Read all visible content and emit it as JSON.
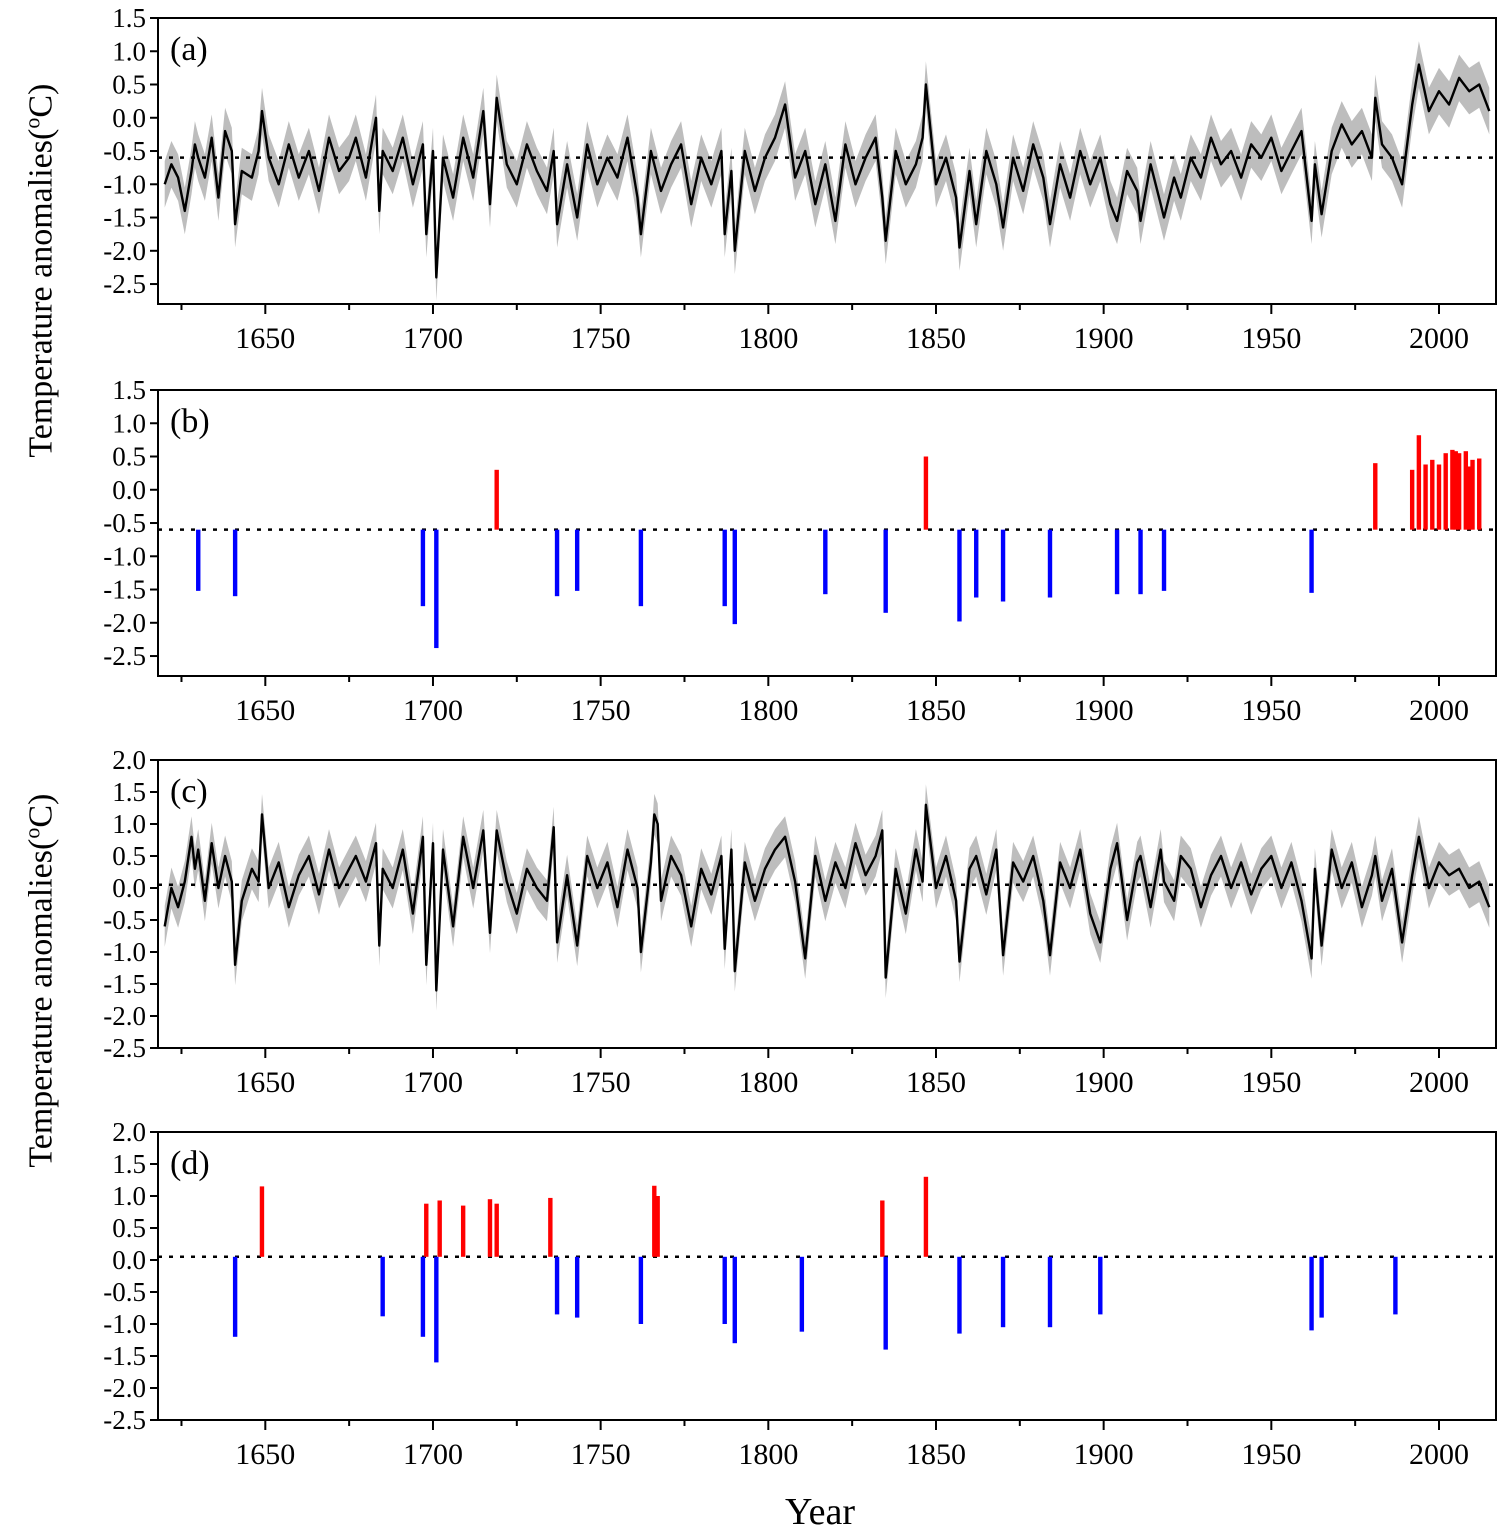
{
  "figure": {
    "ylabel_main": "Temperature anomalies(",
    "ylabel_sup": "o",
    "ylabel_end": "C)",
    "xlabel": "Year"
  },
  "colors": {
    "line": "#000000",
    "band": "#bdbdbd",
    "warm": "#ff0000",
    "cold": "#0000ff",
    "threshold": "#000000"
  },
  "chart_data": [
    {
      "panel": "(a)",
      "type": "line",
      "xlim": [
        1618,
        2017
      ],
      "ylim": [
        -2.8,
        1.5
      ],
      "yticks": [
        "1.5",
        "1.0",
        "0.5",
        "0.0",
        "-0.5",
        "-1.0",
        "-1.5",
        "-2.0",
        "-2.5"
      ],
      "xticks": [
        "1650",
        "1700",
        "1750",
        "1800",
        "1850",
        "1900",
        "1950",
        "2000"
      ],
      "threshold": -0.6,
      "band_halfwidth": 0.35,
      "x": [
        1620,
        1622,
        1624,
        1626,
        1628,
        1629,
        1630,
        1632,
        1634,
        1636,
        1638,
        1640,
        1641,
        1643,
        1646,
        1648,
        1649,
        1651,
        1654,
        1657,
        1660,
        1663,
        1666,
        1669,
        1672,
        1675,
        1677,
        1680,
        1683,
        1684,
        1685,
        1688,
        1691,
        1694,
        1697,
        1698,
        1700,
        1701,
        1703,
        1706,
        1709,
        1712,
        1715,
        1717,
        1719,
        1722,
        1725,
        1728,
        1731,
        1734,
        1736,
        1737,
        1740,
        1743,
        1746,
        1749,
        1752,
        1755,
        1758,
        1761,
        1762,
        1765,
        1768,
        1771,
        1774,
        1777,
        1780,
        1783,
        1786,
        1787,
        1789,
        1790,
        1793,
        1796,
        1799,
        1802,
        1805,
        1808,
        1811,
        1814,
        1817,
        1820,
        1823,
        1826,
        1829,
        1832,
        1834,
        1835,
        1838,
        1841,
        1844,
        1846,
        1847,
        1850,
        1853,
        1856,
        1857,
        1860,
        1862,
        1865,
        1868,
        1870,
        1873,
        1876,
        1879,
        1882,
        1884,
        1887,
        1890,
        1893,
        1896,
        1899,
        1902,
        1904,
        1907,
        1910,
        1911,
        1914,
        1917,
        1918,
        1921,
        1923,
        1926,
        1929,
        1932,
        1935,
        1938,
        1941,
        1944,
        1947,
        1950,
        1953,
        1956,
        1959,
        1962,
        1963,
        1965,
        1968,
        1971,
        1974,
        1977,
        1980,
        1981,
        1983,
        1986,
        1989,
        1992,
        1994,
        1997,
        2000,
        2003,
        2006,
        2009,
        2012,
        2015
      ],
      "y": [
        -1.0,
        -0.7,
        -0.9,
        -1.4,
        -0.8,
        -0.4,
        -0.6,
        -0.9,
        -0.3,
        -1.2,
        -0.2,
        -0.5,
        -1.6,
        -0.8,
        -0.9,
        -0.5,
        0.1,
        -0.6,
        -1.0,
        -0.4,
        -0.9,
        -0.5,
        -1.1,
        -0.3,
        -0.8,
        -0.6,
        -0.3,
        -0.9,
        0.0,
        -1.4,
        -0.5,
        -0.8,
        -0.3,
        -1.0,
        -0.4,
        -1.75,
        -0.5,
        -2.4,
        -0.6,
        -1.2,
        -0.3,
        -0.9,
        0.1,
        -1.3,
        0.3,
        -0.7,
        -1.0,
        -0.4,
        -0.8,
        -1.1,
        -0.5,
        -1.6,
        -0.7,
        -1.5,
        -0.4,
        -1.0,
        -0.6,
        -0.9,
        -0.3,
        -1.2,
        -1.75,
        -0.5,
        -1.1,
        -0.7,
        -0.4,
        -1.3,
        -0.6,
        -1.0,
        -0.5,
        -1.75,
        -0.8,
        -2.0,
        -0.5,
        -1.1,
        -0.6,
        -0.3,
        0.2,
        -0.9,
        -0.5,
        -1.3,
        -0.7,
        -1.55,
        -0.4,
        -1.0,
        -0.6,
        -0.3,
        -1.2,
        -1.85,
        -0.5,
        -1.0,
        -0.7,
        -0.3,
        0.5,
        -1.0,
        -0.6,
        -1.2,
        -1.95,
        -0.8,
        -1.6,
        -0.5,
        -1.0,
        -1.65,
        -0.6,
        -1.1,
        -0.4,
        -0.9,
        -1.6,
        -0.7,
        -1.2,
        -0.5,
        -1.0,
        -0.6,
        -1.3,
        -1.55,
        -0.8,
        -1.1,
        -1.55,
        -0.7,
        -1.3,
        -1.5,
        -0.9,
        -1.2,
        -0.6,
        -0.9,
        -0.3,
        -0.7,
        -0.5,
        -0.9,
        -0.4,
        -0.6,
        -0.3,
        -0.8,
        -0.5,
        -0.2,
        -1.55,
        -0.7,
        -1.45,
        -0.5,
        -0.1,
        -0.4,
        -0.2,
        -0.6,
        0.3,
        -0.4,
        -0.6,
        -1.0,
        0.2,
        0.8,
        0.1,
        0.4,
        0.2,
        0.6,
        0.4,
        0.5,
        0.1
      ]
    },
    {
      "panel": "(b)",
      "type": "bar",
      "xlim": [
        1618,
        2017
      ],
      "ylim": [
        -2.8,
        1.5
      ],
      "yticks": [
        "1.5",
        "1.0",
        "0.5",
        "0.0",
        "-0.5",
        "-1.0",
        "-1.5",
        "-2.0",
        "-2.5"
      ],
      "xticks": [
        "1650",
        "1700",
        "1750",
        "1800",
        "1850",
        "1900",
        "1950",
        "2000"
      ],
      "threshold": -0.6,
      "warm_years": [
        1719,
        1847,
        1981,
        1992,
        1994,
        1996,
        1998,
        2000,
        2002,
        2004,
        2005,
        2006,
        2008,
        2009,
        2010,
        2012
      ],
      "warm_values": [
        0.3,
        0.5,
        0.4,
        0.3,
        0.82,
        0.38,
        0.45,
        0.38,
        0.55,
        0.6,
        0.58,
        0.55,
        0.58,
        0.35,
        0.45,
        0.47
      ],
      "cold_years": [
        1630,
        1641,
        1697,
        1701,
        1737,
        1743,
        1762,
        1787,
        1790,
        1817,
        1835,
        1857,
        1862,
        1870,
        1884,
        1904,
        1911,
        1918,
        1962
      ],
      "cold_values": [
        -1.52,
        -1.6,
        -1.75,
        -2.38,
        -1.6,
        -1.52,
        -1.75,
        -1.75,
        -2.02,
        -1.57,
        -1.85,
        -1.98,
        -1.62,
        -1.68,
        -1.62,
        -1.57,
        -1.57,
        -1.52,
        -1.55
      ]
    },
    {
      "panel": "(c)",
      "type": "line",
      "xlim": [
        1618,
        2017
      ],
      "ylim": [
        -2.5,
        2.0
      ],
      "yticks": [
        "2.0",
        "1.5",
        "1.0",
        "0.5",
        "0.0",
        "-0.5",
        "-1.0",
        "-1.5",
        "-2.0",
        "-2.5"
      ],
      "xticks": [
        "1650",
        "1700",
        "1750",
        "1800",
        "1850",
        "1900",
        "1950",
        "2000"
      ],
      "threshold": 0.05,
      "band_halfwidth": 0.32,
      "x": [
        1620,
        1622,
        1624,
        1626,
        1628,
        1629,
        1630,
        1632,
        1634,
        1636,
        1638,
        1640,
        1641,
        1643,
        1646,
        1648,
        1649,
        1651,
        1654,
        1657,
        1660,
        1663,
        1666,
        1669,
        1672,
        1675,
        1677,
        1680,
        1683,
        1684,
        1685,
        1688,
        1691,
        1694,
        1697,
        1698,
        1700,
        1701,
        1703,
        1706,
        1709,
        1712,
        1715,
        1717,
        1719,
        1722,
        1725,
        1728,
        1731,
        1734,
        1736,
        1737,
        1740,
        1743,
        1746,
        1749,
        1752,
        1755,
        1758,
        1761,
        1762,
        1765,
        1766,
        1767,
        1768,
        1771,
        1774,
        1777,
        1780,
        1783,
        1786,
        1787,
        1789,
        1790,
        1793,
        1796,
        1799,
        1802,
        1805,
        1808,
        1811,
        1814,
        1817,
        1820,
        1823,
        1826,
        1829,
        1832,
        1834,
        1835,
        1838,
        1841,
        1844,
        1846,
        1847,
        1850,
        1853,
        1856,
        1857,
        1860,
        1862,
        1865,
        1868,
        1870,
        1873,
        1876,
        1879,
        1882,
        1884,
        1887,
        1890,
        1893,
        1896,
        1899,
        1902,
        1904,
        1907,
        1910,
        1911,
        1914,
        1917,
        1918,
        1921,
        1923,
        1926,
        1929,
        1932,
        1935,
        1938,
        1941,
        1944,
        1947,
        1950,
        1953,
        1956,
        1959,
        1962,
        1963,
        1965,
        1968,
        1971,
        1974,
        1977,
        1980,
        1981,
        1983,
        1986,
        1989,
        1992,
        1994,
        1997,
        2000,
        2003,
        2006,
        2009,
        2012,
        2015
      ],
      "y": [
        -0.6,
        0.0,
        -0.3,
        0.1,
        0.8,
        0.3,
        0.6,
        -0.2,
        0.7,
        0.0,
        0.5,
        0.1,
        -1.2,
        -0.2,
        0.3,
        0.1,
        1.15,
        0.0,
        0.4,
        -0.3,
        0.2,
        0.5,
        -0.1,
        0.6,
        0.0,
        0.3,
        0.5,
        0.1,
        0.7,
        -0.9,
        0.3,
        0.0,
        0.6,
        -0.4,
        0.8,
        -1.2,
        0.7,
        -1.6,
        0.6,
        -0.6,
        0.8,
        0.0,
        0.9,
        -0.7,
        0.9,
        0.1,
        -0.4,
        0.3,
        0.0,
        -0.2,
        0.95,
        -0.85,
        0.2,
        -0.9,
        0.5,
        0.0,
        0.4,
        -0.3,
        0.6,
        0.0,
        -1.0,
        0.4,
        1.15,
        1.0,
        -0.2,
        0.5,
        0.2,
        -0.6,
        0.3,
        -0.1,
        0.5,
        -0.95,
        0.6,
        -1.3,
        0.4,
        -0.2,
        0.3,
        0.6,
        0.8,
        0.1,
        -1.1,
        0.5,
        -0.2,
        0.4,
        0.0,
        0.7,
        0.2,
        0.5,
        0.9,
        -1.4,
        0.3,
        -0.4,
        0.6,
        0.1,
        1.3,
        0.0,
        0.5,
        -0.2,
        -1.15,
        0.3,
        0.5,
        -0.1,
        0.6,
        -1.05,
        0.4,
        0.1,
        0.5,
        -0.2,
        -1.05,
        0.4,
        0.0,
        0.6,
        -0.4,
        -0.85,
        0.3,
        0.7,
        -0.5,
        0.4,
        0.5,
        -0.3,
        0.6,
        0.1,
        -0.2,
        0.5,
        0.3,
        -0.3,
        0.2,
        0.5,
        0.0,
        0.4,
        -0.1,
        0.3,
        0.5,
        0.0,
        0.4,
        -0.2,
        -1.1,
        0.3,
        -0.9,
        0.6,
        0.0,
        0.4,
        -0.3,
        0.2,
        0.5,
        -0.2,
        0.3,
        -0.85,
        0.2,
        0.8,
        0.0,
        0.4,
        0.2,
        0.3,
        0.0,
        0.1,
        -0.3
      ]
    },
    {
      "panel": "(d)",
      "type": "bar",
      "xlim": [
        1618,
        2017
      ],
      "ylim": [
        -2.5,
        2.0
      ],
      "yticks": [
        "2.0",
        "1.5",
        "1.0",
        "0.5",
        "0.0",
        "-0.5",
        "-1.0",
        "-1.5",
        "-2.0",
        "-2.5"
      ],
      "xticks": [
        "1650",
        "1700",
        "1750",
        "1800",
        "1850",
        "1900",
        "1950",
        "2000"
      ],
      "threshold": 0.05,
      "warm_years": [
        1649,
        1698,
        1702,
        1709,
        1717,
        1719,
        1735,
        1766,
        1767,
        1834,
        1847
      ],
      "warm_values": [
        1.15,
        0.88,
        0.93,
        0.85,
        0.95,
        0.88,
        0.97,
        1.16,
        1.0,
        0.93,
        1.3
      ],
      "cold_years": [
        1641,
        1685,
        1697,
        1701,
        1737,
        1743,
        1762,
        1787,
        1790,
        1810,
        1835,
        1857,
        1870,
        1884,
        1899,
        1962,
        1965,
        1987
      ],
      "cold_values": [
        -1.2,
        -0.88,
        -1.2,
        -1.6,
        -0.85,
        -0.9,
        -1.0,
        -1.0,
        -1.3,
        -1.12,
        -1.4,
        -1.15,
        -1.05,
        -1.05,
        -0.85,
        -1.1,
        -0.9,
        -0.85
      ]
    }
  ]
}
